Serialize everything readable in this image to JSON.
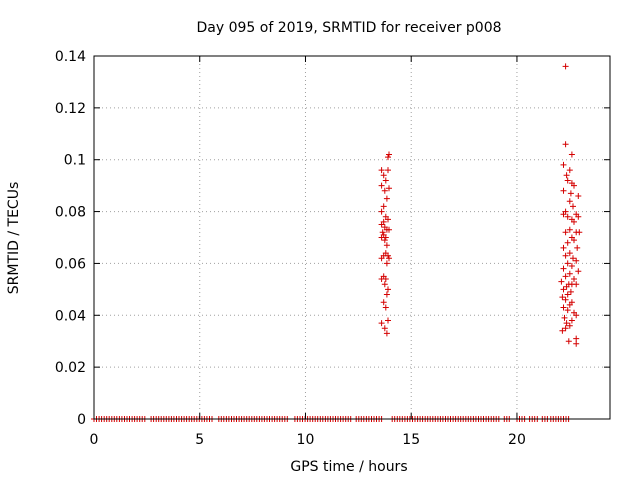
{
  "chart_data": {
    "type": "scatter",
    "title": "Day 095 of 2019, SRMTID for receiver p008",
    "xlabel": "GPS time / hours",
    "ylabel": "SRMTID / TECUs",
    "xlim": [
      0,
      24.4
    ],
    "ylim": [
      0,
      0.14
    ],
    "xticks": [
      0,
      5,
      10,
      15,
      20
    ],
    "xtick_labels": [
      "0",
      "5",
      "10",
      "15",
      "20"
    ],
    "yticks": [
      0,
      0.02,
      0.04,
      0.06,
      0.08,
      0.1,
      0.12,
      0.14
    ],
    "ytick_labels": [
      "0",
      "0.02",
      "0.04",
      "0.06",
      "0.08",
      "0.1",
      "0.12",
      "0.14"
    ],
    "grid": true,
    "marker": "+",
    "marker_color": "#d40000",
    "series": [
      {
        "name": "SRMTID",
        "points": [
          [
            13.6,
            0.096
          ],
          [
            13.7,
            0.094
          ],
          [
            13.9,
            0.101
          ],
          [
            13.95,
            0.102
          ],
          [
            13.8,
            0.092
          ],
          [
            13.9,
            0.096
          ],
          [
            13.6,
            0.09
          ],
          [
            13.75,
            0.088
          ],
          [
            13.95,
            0.089
          ],
          [
            13.85,
            0.085
          ],
          [
            13.7,
            0.082
          ],
          [
            13.6,
            0.08
          ],
          [
            13.8,
            0.078
          ],
          [
            13.7,
            0.076
          ],
          [
            13.9,
            0.077
          ],
          [
            13.6,
            0.075
          ],
          [
            13.75,
            0.074
          ],
          [
            13.85,
            0.073
          ],
          [
            13.95,
            0.073
          ],
          [
            13.65,
            0.072
          ],
          [
            13.7,
            0.071
          ],
          [
            13.8,
            0.07
          ],
          [
            13.6,
            0.07
          ],
          [
            13.75,
            0.069
          ],
          [
            13.85,
            0.067
          ],
          [
            13.7,
            0.063
          ],
          [
            13.8,
            0.064
          ],
          [
            13.9,
            0.063
          ],
          [
            13.95,
            0.062
          ],
          [
            13.6,
            0.062
          ],
          [
            13.85,
            0.06
          ],
          [
            13.7,
            0.055
          ],
          [
            13.6,
            0.054
          ],
          [
            13.8,
            0.054
          ],
          [
            13.75,
            0.052
          ],
          [
            13.9,
            0.05
          ],
          [
            13.85,
            0.048
          ],
          [
            13.7,
            0.045
          ],
          [
            13.8,
            0.043
          ],
          [
            13.6,
            0.037
          ],
          [
            13.75,
            0.035
          ],
          [
            13.85,
            0.033
          ],
          [
            13.9,
            0.038
          ],
          [
            22.3,
            0.136
          ],
          [
            22.3,
            0.106
          ],
          [
            22.6,
            0.102
          ],
          [
            22.2,
            0.098
          ],
          [
            22.5,
            0.096
          ],
          [
            22.35,
            0.094
          ],
          [
            22.4,
            0.092
          ],
          [
            22.6,
            0.091
          ],
          [
            22.7,
            0.09
          ],
          [
            22.2,
            0.088
          ],
          [
            22.55,
            0.087
          ],
          [
            22.9,
            0.086
          ],
          [
            22.5,
            0.084
          ],
          [
            22.65,
            0.082
          ],
          [
            22.3,
            0.08
          ],
          [
            22.2,
            0.079
          ],
          [
            22.4,
            0.078
          ],
          [
            22.8,
            0.079
          ],
          [
            22.6,
            0.077
          ],
          [
            22.7,
            0.076
          ],
          [
            22.9,
            0.078
          ],
          [
            22.5,
            0.073
          ],
          [
            22.3,
            0.072
          ],
          [
            22.8,
            0.072
          ],
          [
            22.95,
            0.072
          ],
          [
            22.6,
            0.07
          ],
          [
            22.7,
            0.069
          ],
          [
            22.4,
            0.068
          ],
          [
            22.2,
            0.066
          ],
          [
            22.85,
            0.066
          ],
          [
            22.5,
            0.064
          ],
          [
            22.3,
            0.063
          ],
          [
            22.65,
            0.062
          ],
          [
            22.8,
            0.061
          ],
          [
            22.4,
            0.06
          ],
          [
            22.6,
            0.059
          ],
          [
            22.2,
            0.058
          ],
          [
            22.9,
            0.057
          ],
          [
            22.5,
            0.056
          ],
          [
            22.3,
            0.055
          ],
          [
            22.7,
            0.054
          ],
          [
            22.1,
            0.053
          ],
          [
            22.45,
            0.052
          ],
          [
            22.6,
            0.052
          ],
          [
            22.8,
            0.052
          ],
          [
            22.35,
            0.051
          ],
          [
            22.2,
            0.05
          ],
          [
            22.55,
            0.049
          ],
          [
            22.4,
            0.048
          ],
          [
            22.15,
            0.047
          ],
          [
            22.3,
            0.046
          ],
          [
            22.6,
            0.045
          ],
          [
            22.5,
            0.044
          ],
          [
            22.2,
            0.043
          ],
          [
            22.4,
            0.042
          ],
          [
            22.7,
            0.041
          ],
          [
            22.8,
            0.04
          ],
          [
            22.25,
            0.039
          ],
          [
            22.6,
            0.038
          ],
          [
            22.35,
            0.037
          ],
          [
            22.5,
            0.036
          ],
          [
            22.3,
            0.035
          ],
          [
            22.15,
            0.034
          ],
          [
            22.8,
            0.031
          ],
          [
            22.8,
            0.029
          ],
          [
            22.45,
            0.03
          ]
        ],
        "zero_band": [
          [
            0.0,
            2.5
          ],
          [
            2.7,
            5.6
          ],
          [
            5.9,
            9.2
          ],
          [
            9.5,
            12.2
          ],
          [
            12.4,
            13.6
          ],
          [
            14.1,
            18.8
          ],
          [
            18.9,
            19.2
          ],
          [
            19.4,
            19.7
          ],
          [
            20.0,
            20.4
          ],
          [
            20.6,
            21.0
          ],
          [
            21.2,
            21.5
          ],
          [
            21.6,
            22.5
          ]
        ],
        "zero_band_value": 0
      }
    ]
  }
}
